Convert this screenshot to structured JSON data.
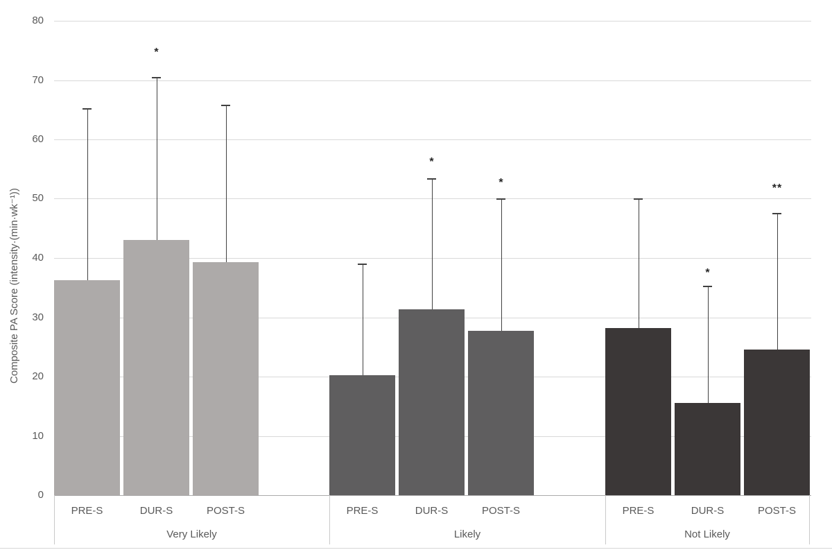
{
  "chart_data": {
    "type": "bar",
    "title": "",
    "xlabel": "",
    "ylabel": "Composite PA Score (intensity·(min·wk⁻¹))",
    "ylim": [
      0,
      80
    ],
    "yticks": [
      0,
      10,
      20,
      30,
      40,
      50,
      60,
      70,
      80
    ],
    "grid": "horizontal",
    "legend": "none",
    "error_bars": "plus-direction, capped",
    "group_axis": [
      "Very Likely",
      "Likely",
      "Not Likely"
    ],
    "series_axis": [
      "PRE-S",
      "DUR-S",
      "POST-S"
    ],
    "groups": [
      {
        "label": "Very Likely",
        "bar_color": "#ADAAA9",
        "bars": [
          {
            "label": "PRE-S",
            "value": 36.2,
            "error_top": 65.2,
            "annotation": ""
          },
          {
            "label": "DUR-S",
            "value": 43.0,
            "error_top": 70.4,
            "annotation": "*",
            "annotation_y": 74.7
          },
          {
            "label": "POST-S",
            "value": 39.3,
            "error_top": 65.7,
            "annotation": ""
          }
        ]
      },
      {
        "label": "Likely",
        "bar_color": "#5F5E5F",
        "bars": [
          {
            "label": "PRE-S",
            "value": 20.2,
            "error_top": 38.9,
            "annotation": ""
          },
          {
            "label": "DUR-S",
            "value": 31.4,
            "error_top": 53.3,
            "annotation": "*",
            "annotation_y": 56.2
          },
          {
            "label": "POST-S",
            "value": 27.7,
            "error_top": 49.9,
            "annotation": "*",
            "annotation_y": 52.8
          }
        ]
      },
      {
        "label": "Not Likely",
        "bar_color": "#3B3737",
        "bars": [
          {
            "label": "PRE-S",
            "value": 28.2,
            "error_top": 49.9,
            "annotation": ""
          },
          {
            "label": "DUR-S",
            "value": 15.5,
            "error_top": 35.2,
            "annotation": "*",
            "annotation_y": 37.6
          },
          {
            "label": "POST-S",
            "value": 24.6,
            "error_top": 47.5,
            "annotation": "**",
            "annotation_y": 51.8
          }
        ]
      }
    ]
  }
}
